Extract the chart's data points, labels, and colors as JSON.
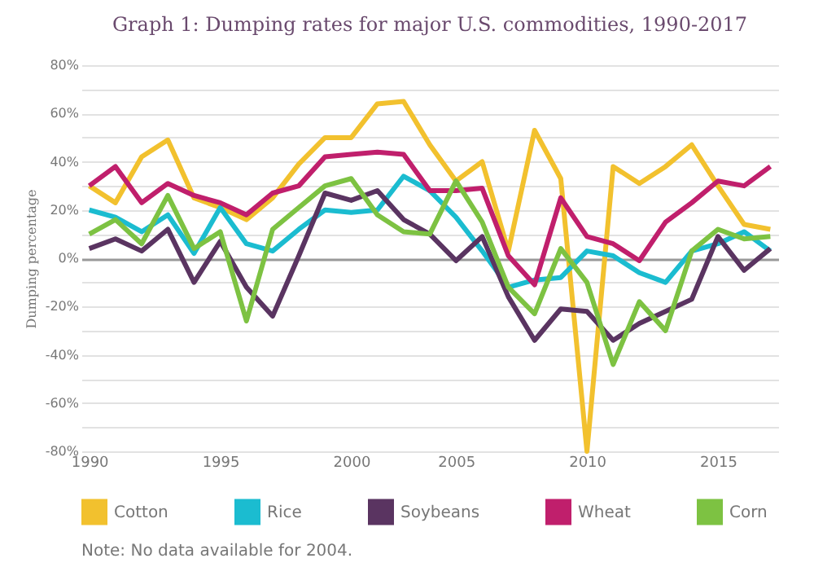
{
  "chart_data": {
    "type": "line",
    "title": "Graph 1: Dumping rates for major U.S. commodities, 1990-2017",
    "ylabel": "Dumping percentage",
    "annotations": [
      "Note: No data available for 2004."
    ],
    "categories": [
      "1990",
      null,
      null,
      null,
      null,
      "1995",
      null,
      null,
      null,
      null,
      "2000",
      null,
      null,
      null,
      "2005",
      null,
      null,
      null,
      null,
      "2010",
      null,
      null,
      null,
      null,
      "2015",
      null,
      null
    ],
    "series": [
      {
        "name": "Cotton",
        "color": "#f2c12e",
        "values": [
          30,
          23,
          42,
          49,
          25,
          21,
          16,
          25,
          39,
          50,
          50,
          64,
          65,
          47,
          32,
          40,
          3,
          53,
          33,
          -80,
          38,
          31,
          38,
          47,
          30,
          14,
          12
        ]
      },
      {
        "name": "Rice",
        "color": "#1bbcd0",
        "values": [
          20,
          17,
          11,
          18,
          2,
          21,
          6,
          3,
          12,
          20,
          19,
          20,
          34,
          28,
          17,
          3,
          -12,
          -9,
          -8,
          3,
          1,
          -6,
          -10,
          3,
          6,
          11,
          3
        ]
      },
      {
        "name": "Soybeans",
        "color": "#5a3461",
        "values": [
          4,
          8,
          3,
          12,
          -10,
          7,
          -12,
          -24,
          1,
          27,
          24,
          28,
          16,
          10,
          -1,
          9,
          -16,
          -34,
          -21,
          -22,
          -34,
          -27,
          -22,
          -17,
          9,
          -5,
          4
        ]
      },
      {
        "name": "Wheat",
        "color": "#c01f6c",
        "values": [
          30,
          38,
          23,
          31,
          26,
          23,
          18,
          27,
          30,
          42,
          43,
          44,
          43,
          28,
          28,
          29,
          1,
          -11,
          25,
          9,
          6,
          -1,
          15,
          23,
          32,
          30,
          38
        ]
      },
      {
        "name": "Corn",
        "color": "#7dc242",
        "values": [
          10,
          16,
          6,
          26,
          4,
          11,
          -26,
          12,
          21,
          30,
          33,
          18,
          11,
          10,
          32,
          15,
          -12,
          -23,
          4,
          -10,
          -44,
          -18,
          -30,
          3,
          12,
          8,
          9
        ]
      }
    ],
    "ylim": [
      -80,
      80
    ],
    "yticks": [
      {
        "value": -80,
        "label": "-80%"
      },
      {
        "value": -70,
        "label": null
      },
      {
        "value": -60,
        "label": "-60%"
      },
      {
        "value": -50,
        "label": null
      },
      {
        "value": -40,
        "label": "-40%"
      },
      {
        "value": -30,
        "label": null
      },
      {
        "value": -20,
        "label": "-20%"
      },
      {
        "value": -10,
        "label": null
      },
      {
        "value": 0,
        "label": "0%"
      },
      {
        "value": 10,
        "label": null
      },
      {
        "value": 20,
        "label": "20%"
      },
      {
        "value": 30,
        "label": null
      },
      {
        "value": 40,
        "label": "40%"
      },
      {
        "value": 50,
        "label": null
      },
      {
        "value": 60,
        "label": "60%"
      },
      {
        "value": 70,
        "label": null
      },
      {
        "value": 80,
        "label": "80%"
      }
    ],
    "grid": "y",
    "legend": "bottom",
    "marker": "none",
    "line_style": "solid"
  }
}
